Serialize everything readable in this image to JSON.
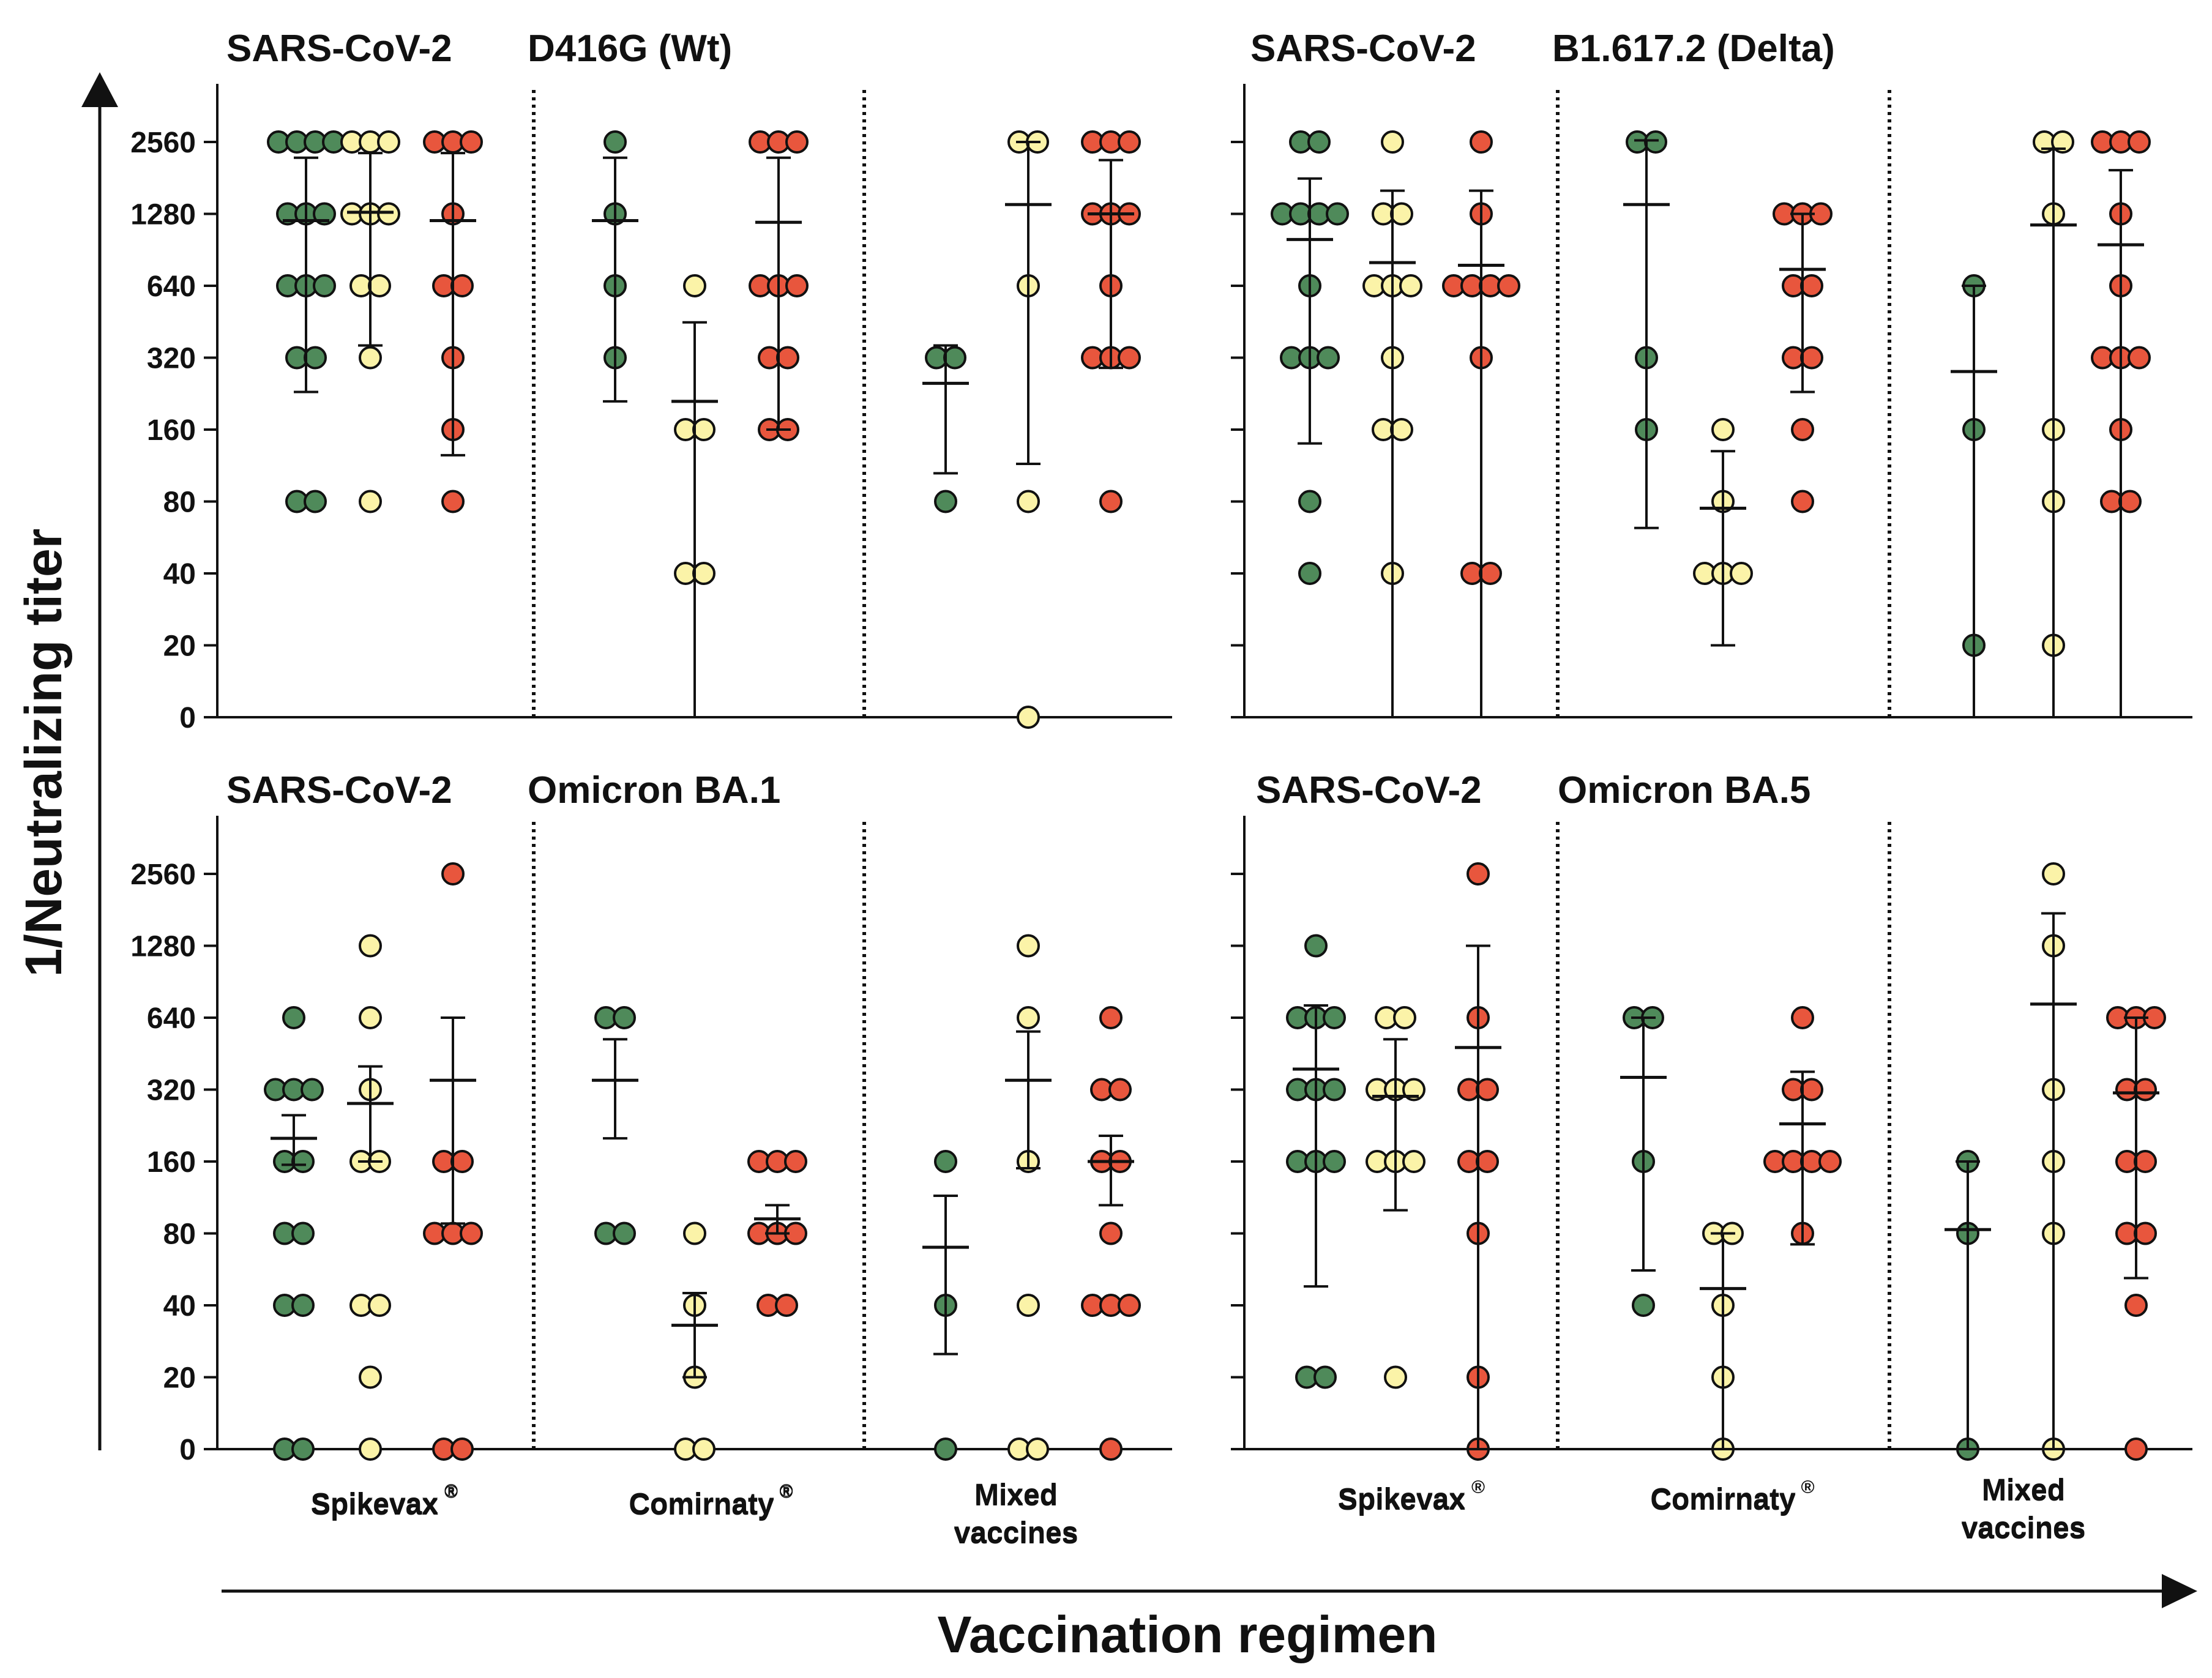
{
  "figure": {
    "y_axis_title": "1/Neutralizing titer",
    "x_axis_title": "Vaccination regimen",
    "colors": {
      "green": "#4f8a5a",
      "yellow": "#fbf3a8",
      "red": "#e8563d",
      "line": "#111111"
    }
  },
  "chart_data": [
    {
      "type": "scatter",
      "title_virus": "SARS-CoV-2",
      "title_variant": "D416G (Wt)",
      "position": "top-left",
      "yticks": [
        "2560",
        "1280",
        "640",
        "320",
        "160",
        "80",
        "40",
        "20",
        "0"
      ],
      "groups": [
        {
          "label": "Spikevax",
          "sup": "®",
          "label2": ""
        },
        {
          "label": "Comirnaty",
          "sup": "®",
          "label2": ""
        },
        {
          "label": "Mixed",
          "sup": "",
          "label2": "vaccines"
        }
      ],
      "series": [
        {
          "group": 0,
          "color": "green",
          "points": [
            2560,
            2560,
            2560,
            2560,
            1280,
            1280,
            1280,
            640,
            640,
            640,
            320,
            320,
            80,
            80
          ],
          "mean": 1200,
          "err": [
            2200,
            230
          ]
        },
        {
          "group": 0,
          "color": "yellow",
          "points": [
            2560,
            2560,
            2560,
            1280,
            1280,
            1280,
            640,
            640,
            320,
            80
          ],
          "mean": 1300,
          "err": [
            2300,
            360
          ]
        },
        {
          "group": 0,
          "color": "red",
          "points": [
            2560,
            2560,
            2560,
            1280,
            640,
            640,
            320,
            160,
            80
          ],
          "mean": 1200,
          "err": [
            2300,
            125
          ]
        },
        {
          "group": 1,
          "color": "green",
          "points": [
            2560,
            1280,
            640,
            320
          ],
          "mean": 1200,
          "err": [
            2200,
            210
          ]
        },
        {
          "group": 1,
          "color": "yellow",
          "points": [
            640,
            160,
            160,
            40,
            40
          ],
          "mean": 210,
          "err": [
            450,
            0
          ]
        },
        {
          "group": 1,
          "color": "red",
          "points": [
            2560,
            2560,
            2560,
            640,
            640,
            640,
            320,
            320,
            160,
            160
          ],
          "mean": 1180,
          "err": [
            2200,
            160
          ]
        },
        {
          "group": 2,
          "color": "green",
          "points": [
            320,
            320,
            80
          ],
          "mean": 250,
          "err": [
            360,
            105
          ]
        },
        {
          "group": 2,
          "color": "yellow",
          "points": [
            2560,
            2560,
            640,
            80,
            0
          ],
          "mean": 1400,
          "err": [
            2560,
            115
          ]
        },
        {
          "group": 2,
          "color": "red",
          "points": [
            2560,
            2560,
            2560,
            1280,
            1280,
            1280,
            640,
            320,
            320,
            320,
            80
          ],
          "mean": 1280,
          "err": [
            2150,
            290
          ]
        }
      ]
    },
    {
      "type": "scatter",
      "title_virus": "SARS-CoV-2",
      "title_variant": "B1.617.2 (Delta)",
      "position": "top-right",
      "yticks": [
        "2560",
        "1280",
        "640",
        "320",
        "160",
        "80",
        "40",
        "20",
        "0"
      ],
      "groups": [
        {
          "label": "Spikevax",
          "sup": "",
          "label2": ""
        },
        {
          "label": "Comirnaty",
          "sup": "",
          "label2": ""
        },
        {
          "label": "Mixed",
          "sup": "",
          "label2": "vaccines"
        }
      ],
      "series": [
        {
          "group": 0,
          "color": "green",
          "points": [
            2560,
            2560,
            1280,
            1280,
            1280,
            1280,
            640,
            320,
            320,
            320,
            80,
            40
          ],
          "mean": 1000,
          "err": [
            1800,
            140
          ]
        },
        {
          "group": 0,
          "color": "yellow",
          "points": [
            2560,
            1280,
            1280,
            640,
            640,
            640,
            320,
            160,
            160,
            40
          ],
          "mean": 800,
          "err": [
            1600,
            0
          ]
        },
        {
          "group": 0,
          "color": "red",
          "points": [
            2560,
            1280,
            640,
            640,
            640,
            640,
            320,
            40,
            40
          ],
          "mean": 780,
          "err": [
            1600,
            0
          ]
        },
        {
          "group": 1,
          "color": "green",
          "points": [
            2560,
            2560,
            320,
            160
          ],
          "mean": 1400,
          "err": [
            2600,
            62
          ]
        },
        {
          "group": 1,
          "color": "yellow",
          "points": [
            160,
            80,
            40,
            40,
            40
          ],
          "mean": 75,
          "err": [
            130,
            20
          ]
        },
        {
          "group": 1,
          "color": "red",
          "points": [
            1280,
            1280,
            1280,
            640,
            640,
            320,
            320,
            160,
            80
          ],
          "mean": 750,
          "err": [
            1280,
            230
          ]
        },
        {
          "group": 2,
          "color": "green",
          "points": [
            640,
            160,
            20
          ],
          "mean": 280,
          "err": [
            640,
            0
          ]
        },
        {
          "group": 2,
          "color": "yellow",
          "points": [
            2560,
            2560,
            1280,
            160,
            80,
            20
          ],
          "mean": 1150,
          "err": [
            2400,
            0
          ]
        },
        {
          "group": 2,
          "color": "red",
          "points": [
            2560,
            2560,
            2560,
            1280,
            640,
            320,
            320,
            320,
            160,
            80,
            80
          ],
          "mean": 950,
          "err": [
            1950,
            0
          ]
        }
      ]
    },
    {
      "type": "scatter",
      "title_virus": "SARS-CoV-2",
      "title_variant": "Omicron BA.1",
      "position": "bottom-left",
      "yticks": [
        "2560",
        "1280",
        "640",
        "320",
        "160",
        "80",
        "40",
        "20",
        "0"
      ],
      "groups": [
        {
          "label": "Spikevax",
          "sup": "®",
          "label2": ""
        },
        {
          "label": "Comirnaty",
          "sup": "®",
          "label2": ""
        },
        {
          "label": "Mixed",
          "sup": "",
          "label2": "vaccines"
        }
      ],
      "series": [
        {
          "group": 0,
          "color": "green",
          "points": [
            640,
            320,
            320,
            320,
            160,
            160,
            80,
            80,
            40,
            40,
            0,
            0
          ],
          "mean": 200,
          "err": [
            250,
            155
          ]
        },
        {
          "group": 0,
          "color": "yellow",
          "points": [
            1280,
            640,
            320,
            160,
            160,
            40,
            40,
            20,
            0
          ],
          "mean": 280,
          "err": [
            400,
            160
          ]
        },
        {
          "group": 0,
          "color": "red",
          "points": [
            2560,
            160,
            160,
            80,
            80,
            80,
            0,
            0
          ],
          "mean": 350,
          "err": [
            640,
            88
          ]
        },
        {
          "group": 1,
          "color": "green",
          "points": [
            640,
            640,
            80,
            80
          ],
          "mean": 350,
          "err": [
            520,
            200
          ]
        },
        {
          "group": 1,
          "color": "yellow",
          "points": [
            80,
            40,
            20,
            0,
            0
          ],
          "mean": 33,
          "err": [
            45,
            20
          ]
        },
        {
          "group": 1,
          "color": "red",
          "points": [
            160,
            160,
            160,
            80,
            80,
            80,
            40,
            40
          ],
          "mean": 92,
          "err": [
            105,
            80
          ]
        },
        {
          "group": 2,
          "color": "green",
          "points": [
            160,
            40,
            0
          ],
          "mean": 70,
          "err": [
            115,
            25
          ]
        },
        {
          "group": 2,
          "color": "yellow",
          "points": [
            1280,
            640,
            160,
            40,
            0,
            0
          ],
          "mean": 350,
          "err": [
            560,
            150
          ]
        },
        {
          "group": 2,
          "color": "red",
          "points": [
            640,
            320,
            320,
            160,
            160,
            80,
            40,
            40,
            40,
            0
          ],
          "mean": 160,
          "err": [
            205,
            105
          ]
        }
      ]
    },
    {
      "type": "scatter",
      "title_virus": "SARS-CoV-2",
      "title_variant": "Omicron BA.5",
      "position": "bottom-right",
      "yticks": [
        "2560",
        "1280",
        "640",
        "320",
        "160",
        "80",
        "40",
        "20",
        "0"
      ],
      "groups": [
        {
          "label": "Spikevax",
          "sup": "®",
          "label2": ""
        },
        {
          "label": "Comirnaty",
          "sup": "®",
          "label2": ""
        },
        {
          "label": "Mixed",
          "sup": "",
          "label2": "vaccines"
        }
      ],
      "series": [
        {
          "group": 0,
          "color": "green",
          "points": [
            1280,
            640,
            640,
            640,
            320,
            320,
            320,
            160,
            160,
            160,
            20,
            20
          ],
          "mean": 390,
          "err": [
            720,
            48
          ]
        },
        {
          "group": 0,
          "color": "yellow",
          "points": [
            640,
            640,
            320,
            320,
            320,
            160,
            160,
            160,
            20
          ],
          "mean": 300,
          "err": [
            520,
            100
          ]
        },
        {
          "group": 0,
          "color": "red",
          "points": [
            2560,
            640,
            320,
            320,
            160,
            160,
            80,
            20,
            0
          ],
          "mean": 480,
          "err": [
            1280,
            0
          ]
        },
        {
          "group": 1,
          "color": "green",
          "points": [
            640,
            640,
            160,
            40
          ],
          "mean": 360,
          "err": [
            640,
            56
          ]
        },
        {
          "group": 1,
          "color": "yellow",
          "points": [
            80,
            80,
            40,
            20,
            0
          ],
          "mean": 47,
          "err": [
            80,
            8
          ]
        },
        {
          "group": 1,
          "color": "red",
          "points": [
            640,
            320,
            320,
            160,
            160,
            160,
            160,
            80
          ],
          "mean": 230,
          "err": [
            380,
            72
          ]
        },
        {
          "group": 2,
          "color": "green",
          "points": [
            160,
            80,
            0
          ],
          "mean": 83,
          "err": [
            160,
            0
          ]
        },
        {
          "group": 2,
          "color": "yellow",
          "points": [
            2560,
            1280,
            320,
            160,
            80,
            0
          ],
          "mean": 730,
          "err": [
            1750,
            0
          ]
        },
        {
          "group": 2,
          "color": "red",
          "points": [
            640,
            640,
            640,
            320,
            320,
            160,
            160,
            80,
            80,
            40,
            0
          ],
          "mean": 310,
          "err": [
            640,
            52
          ]
        }
      ]
    }
  ]
}
